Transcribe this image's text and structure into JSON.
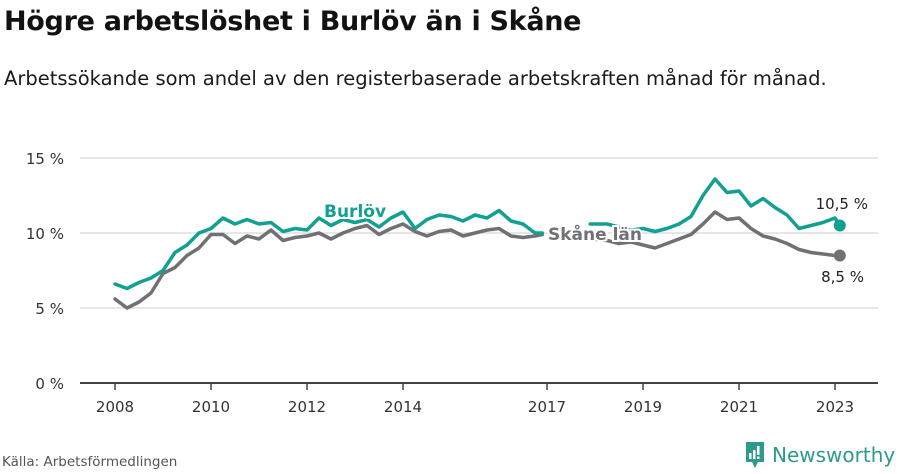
{
  "header": {
    "title": "Högre arbetslöshet i Burlöv än i Skåne",
    "subtitle": "Arbetssökande som andel av den registerbaserade arbetskraften månad för månad."
  },
  "footer": {
    "source": "Källa: Arbetsförmedlingen",
    "brand": "Newsworthy",
    "brand_icon": "bar-chart-speech-bubble-icon"
  },
  "colors": {
    "burlov": "#11a091",
    "skane": "#727075",
    "grid": "#dddddd",
    "axis": "#444444",
    "brand": "#2d9a8d"
  },
  "chart_data": {
    "type": "line",
    "title": "Högre arbetslöshet i Burlöv än i Skåne",
    "subtitle": "Arbetssökande som andel av den registerbaserade arbetskraften månad för månad.",
    "xlabel": "",
    "ylabel": "",
    "ylim": [
      0,
      15
    ],
    "y_ticks": [
      "0 %",
      "5 %",
      "10 %",
      "15 %"
    ],
    "x_ticks": [
      "2008",
      "2010",
      "2012",
      "2014",
      "2017",
      "2019",
      "2021",
      "2023"
    ],
    "grid": true,
    "legend": "inline labels",
    "annotations": [
      {
        "text": "Burlöv",
        "series": "Burlöv"
      },
      {
        "text": "Skåne län",
        "series": "Skåne län"
      },
      {
        "text": "10,5 %",
        "series": "Burlöv",
        "note": "last value"
      },
      {
        "text": "8,5 %",
        "series": "Skåne län",
        "note": "last value"
      }
    ],
    "x": [
      2008.0,
      2008.25,
      2008.5,
      2008.75,
      2009.0,
      2009.25,
      2009.5,
      2009.75,
      2010.0,
      2010.25,
      2010.5,
      2010.75,
      2011.0,
      2011.25,
      2011.5,
      2011.75,
      2012.0,
      2012.25,
      2012.5,
      2012.75,
      2013.0,
      2013.25,
      2013.5,
      2013.75,
      2014.0,
      2014.25,
      2014.5,
      2014.75,
      2015.0,
      2015.25,
      2015.5,
      2015.75,
      2016.0,
      2016.25,
      2016.5,
      2016.75,
      2016.9,
      2017.9,
      2018.25,
      2018.5,
      2018.75,
      2019.0,
      2019.25,
      2019.5,
      2019.75,
      2020.0,
      2020.25,
      2020.5,
      2020.75,
      2021.0,
      2021.25,
      2021.5,
      2021.75,
      2022.0,
      2022.25,
      2022.5,
      2022.75,
      2023.0,
      2023.1
    ],
    "series": [
      {
        "name": "Burlöv",
        "values": [
          6.6,
          6.3,
          6.7,
          7.0,
          7.5,
          8.7,
          9.2,
          10.0,
          10.3,
          11.0,
          10.6,
          10.9,
          10.6,
          10.7,
          10.1,
          10.3,
          10.2,
          11.0,
          10.5,
          10.9,
          10.7,
          10.9,
          10.4,
          11.0,
          11.4,
          10.3,
          10.9,
          11.2,
          11.1,
          10.8,
          11.2,
          11.0,
          11.5,
          10.8,
          10.6,
          10.0,
          10.0,
          10.6,
          10.6,
          10.4,
          10.2,
          10.3,
          10.1,
          10.3,
          10.6,
          11.1,
          12.5,
          13.6,
          12.7,
          12.8,
          11.8,
          12.3,
          11.7,
          11.2,
          10.3,
          10.5,
          10.7,
          11.0,
          10.5
        ]
      },
      {
        "name": "Skåne län",
        "values": [
          5.6,
          5.0,
          5.4,
          6.0,
          7.3,
          7.7,
          8.5,
          9.0,
          9.9,
          9.9,
          9.3,
          9.8,
          9.6,
          10.2,
          9.5,
          9.7,
          9.8,
          10.0,
          9.6,
          10.0,
          10.3,
          10.5,
          9.9,
          10.3,
          10.6,
          10.1,
          9.8,
          10.1,
          10.2,
          9.8,
          10.0,
          10.2,
          10.3,
          9.8,
          9.7,
          9.8,
          9.9,
          9.6,
          9.5,
          9.3,
          9.4,
          9.2,
          9.0,
          9.3,
          9.6,
          9.9,
          10.6,
          11.4,
          10.9,
          11.0,
          10.3,
          9.8,
          9.6,
          9.3,
          8.9,
          8.7,
          8.6,
          8.5,
          8.5
        ]
      }
    ]
  }
}
